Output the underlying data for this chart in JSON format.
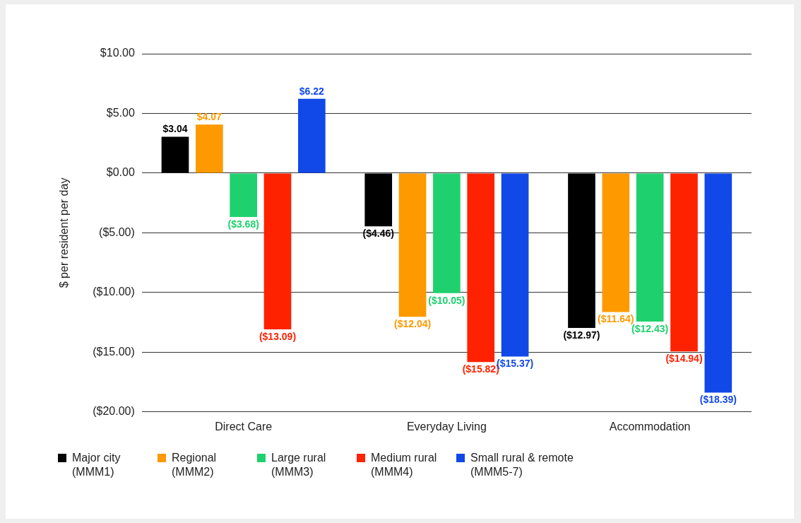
{
  "chart_data": {
    "type": "bar",
    "ylabel": "$ per resident per day",
    "categories": [
      "Direct Care",
      "Everyday Living",
      "Accommodation"
    ],
    "series": [
      {
        "name": "Major city\n(MMM1)",
        "color": "#000000",
        "values": [
          3.04,
          -4.46,
          -12.97
        ],
        "value_labels": [
          "$3.04",
          "($4.46)",
          "($12.97)"
        ]
      },
      {
        "name": "Regional\n(MMM2)",
        "color": "#ff9900",
        "values": [
          4.07,
          -12.04,
          -11.64
        ],
        "value_labels": [
          "$4.07",
          "($12.04)",
          "($11.64)"
        ]
      },
      {
        "name": "Large rural\n(MMM3)",
        "color": "#1fd16e",
        "values": [
          -3.68,
          -10.05,
          -12.43
        ],
        "value_labels": [
          "($3.68)",
          "($10.05)",
          "($12.43)"
        ]
      },
      {
        "name": "Medium rural\n(MMM4)",
        "color": "#ff2200",
        "values": [
          -13.09,
          -15.82,
          -14.94
        ],
        "value_labels": [
          "($13.09)",
          "($15.82)",
          "($14.94)"
        ]
      },
      {
        "name": "Small rural & remote\n(MMM5-7)",
        "color": "#1148e8",
        "values": [
          6.22,
          -15.37,
          -18.39
        ],
        "value_labels": [
          "$6.22",
          "($15.37)",
          "($18.39)"
        ]
      }
    ],
    "ylim": [
      -20,
      10
    ],
    "yticks": [
      {
        "value": -20,
        "label": "($20.00)"
      },
      {
        "value": -15,
        "label": "($15.00)"
      },
      {
        "value": -10,
        "label": "($10.00)"
      },
      {
        "value": -5,
        "label": "($5.00)"
      },
      {
        "value": 0,
        "label": "$0.00"
      },
      {
        "value": 5,
        "label": "$5.00"
      },
      {
        "value": 10,
        "label": "$10.00"
      }
    ],
    "grid": "y",
    "legend": "bottom left"
  }
}
